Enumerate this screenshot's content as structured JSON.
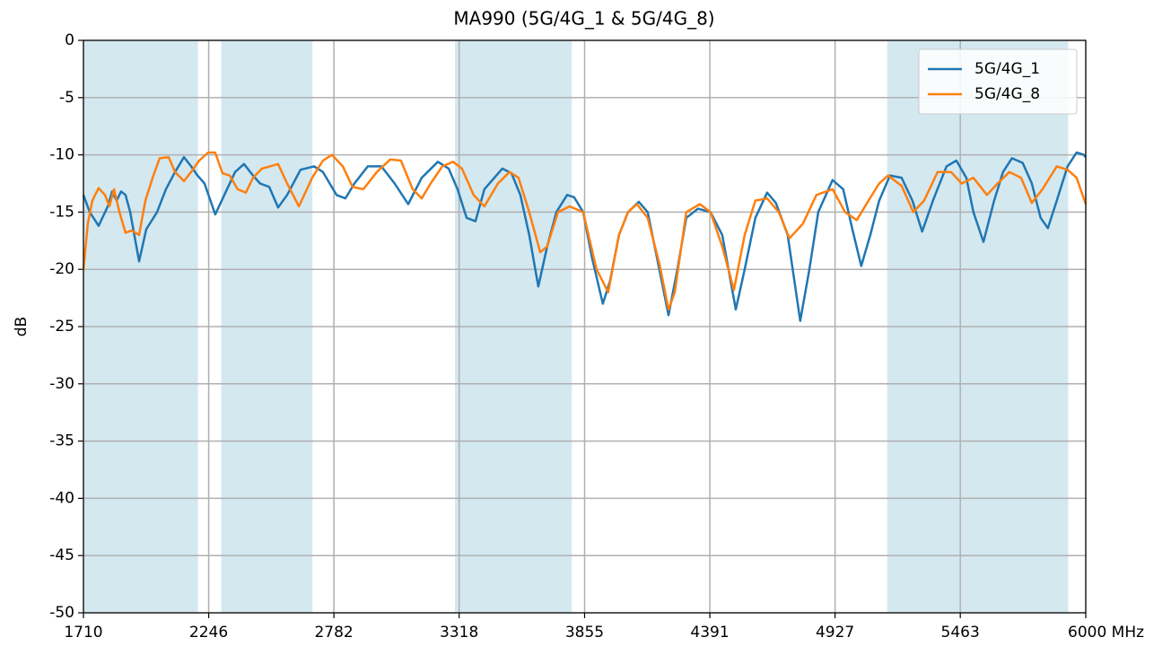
{
  "chart_data": {
    "type": "line",
    "title": "MA990 (5G/4G_1 & 5G/4G_8)",
    "y_label": "dB",
    "xlim": [
      1710,
      6000
    ],
    "ylim": [
      -50,
      0
    ],
    "xticks": [
      1710,
      2246,
      2782,
      3318,
      3855,
      4391,
      4927,
      5463,
      {
        "value": 6000,
        "label": "6000 MHz"
      }
    ],
    "yticks": [
      0,
      -5,
      -10,
      -15,
      -20,
      -25,
      -30,
      -35,
      -40,
      -45,
      -50
    ],
    "grid": true,
    "legend": "upper right",
    "bands": [
      [
        1710,
        2200
      ],
      [
        2300,
        2690
      ],
      [
        3300,
        3800
      ],
      [
        5150,
        5925
      ]
    ],
    "band_color": "#d4e8f0",
    "series": [
      {
        "name": "5G/4G_1",
        "color": "#1f77b4",
        "x": [
          1710,
          1737,
          1775,
          1814,
          1833,
          1852,
          1871,
          1890,
          1910,
          1948,
          1979,
          2025,
          2063,
          2102,
          2140,
          2171,
          2198,
          2228,
          2274,
          2313,
          2359,
          2397,
          2436,
          2466,
          2505,
          2543,
          2582,
          2639,
          2697,
          2735,
          2793,
          2831,
          2870,
          2927,
          2985,
          3042,
          3100,
          3158,
          3227,
          3273,
          3311,
          3350,
          3388,
          3426,
          3503,
          3542,
          3580,
          3618,
          3657,
          3695,
          3734,
          3780,
          3810,
          3849,
          3887,
          3933,
          3964,
          4002,
          4041,
          4087,
          4125,
          4175,
          4214,
          4252,
          4290,
          4340,
          4394,
          4444,
          4502,
          4540,
          4586,
          4636,
          4674,
          4724,
          4778,
          4817,
          4855,
          4916,
          4962,
          5001,
          5039,
          5078,
          5116,
          5162,
          5212,
          5258,
          5300,
          5346,
          5404,
          5446,
          5489,
          5519,
          5562,
          5608,
          5646,
          5684,
          5730,
          5769,
          5807,
          5838,
          5876,
          5922,
          5961,
          5992,
          6000
        ],
        "values": [
          -13.5,
          -15,
          -16.2,
          -14.5,
          -13.2,
          -14,
          -13.2,
          -13.5,
          -15,
          -19.3,
          -16.5,
          -15,
          -13,
          -11.5,
          -10.2,
          -11,
          -11.8,
          -12.5,
          -15.2,
          -13.5,
          -11.5,
          -10.8,
          -11.8,
          -12.5,
          -12.8,
          -14.6,
          -13.5,
          -11.3,
          -11,
          -11.5,
          -13.5,
          -13.8,
          -12.5,
          -11,
          -11,
          -12.5,
          -14.3,
          -12,
          -10.6,
          -11.2,
          -13,
          -15.5,
          -15.8,
          -13,
          -11.2,
          -11.6,
          -13.5,
          -17,
          -21.5,
          -18,
          -15,
          -13.5,
          -13.7,
          -15,
          -19,
          -23,
          -21,
          -17,
          -15,
          -14.1,
          -15,
          -20,
          -24,
          -20,
          -15.5,
          -14.7,
          -15,
          -17,
          -23.5,
          -20,
          -15.5,
          -13.3,
          -14.2,
          -17,
          -24.5,
          -20,
          -15,
          -12.2,
          -13,
          -16.5,
          -19.7,
          -17,
          -14,
          -11.8,
          -12,
          -14,
          -16.7,
          -14,
          -11,
          -10.5,
          -12,
          -15,
          -17.6,
          -14,
          -11.5,
          -10.3,
          -10.7,
          -12.5,
          -15.5,
          -16.4,
          -14,
          -11,
          -9.8,
          -10,
          -10.2
        ]
      },
      {
        "name": "5G/4G_8",
        "color": "#ff7f0e",
        "x": [
          1710,
          1729,
          1748,
          1775,
          1802,
          1821,
          1841,
          1864,
          1890,
          1917,
          1948,
          1975,
          2006,
          2036,
          2075,
          2102,
          2140,
          2171,
          2205,
          2244,
          2274,
          2305,
          2336,
          2370,
          2405,
          2436,
          2474,
          2543,
          2582,
          2632,
          2689,
          2735,
          2774,
          2820,
          2862,
          2908,
          2966,
          3023,
          3069,
          3119,
          3158,
          3196,
          3246,
          3292,
          3330,
          3380,
          3426,
          3484,
          3534,
          3572,
          3618,
          3665,
          3695,
          3741,
          3791,
          3849,
          3906,
          3956,
          4002,
          4041,
          4079,
          4125,
          4175,
          4214,
          4241,
          4290,
          4348,
          4394,
          4444,
          4494,
          4540,
          4586,
          4636,
          4686,
          4732,
          4790,
          4847,
          4916,
          4970,
          5020,
          5070,
          5116,
          5154,
          5212,
          5262,
          5308,
          5366,
          5423,
          5469,
          5519,
          5577,
          5623,
          5673,
          5723,
          5769,
          5815,
          5876,
          5922,
          5961,
          6000
        ],
        "values": [
          -20,
          -16,
          -14,
          -12.9,
          -13.5,
          -14.5,
          -13,
          -15,
          -16.8,
          -16.6,
          -17,
          -14,
          -12,
          -10.3,
          -10.2,
          -11.5,
          -12.3,
          -11.5,
          -10.5,
          -9.8,
          -9.8,
          -11.6,
          -11.8,
          -13,
          -13.3,
          -12,
          -11.2,
          -10.8,
          -12.5,
          -14.5,
          -12,
          -10.5,
          -10,
          -11,
          -12.8,
          -13,
          -11.5,
          -10.4,
          -10.5,
          -13,
          -13.8,
          -12.5,
          -11,
          -10.6,
          -11.2,
          -13.5,
          -14.5,
          -12.5,
          -11.5,
          -12,
          -15,
          -18.5,
          -18,
          -15,
          -14.5,
          -15,
          -20,
          -22,
          -17,
          -15,
          -14.3,
          -15.5,
          -19.5,
          -23.5,
          -22,
          -15,
          -14.3,
          -15,
          -18,
          -21.8,
          -17,
          -14,
          -13.8,
          -15,
          -17.3,
          -16,
          -13.5,
          -13,
          -15,
          -15.7,
          -14,
          -12.5,
          -11.8,
          -12.7,
          -15,
          -14,
          -11.5,
          -11.5,
          -12.5,
          -12,
          -13.5,
          -12.5,
          -11.5,
          -12,
          -14.2,
          -13,
          -11,
          -11.3,
          -12,
          -14.3
        ]
      }
    ]
  }
}
